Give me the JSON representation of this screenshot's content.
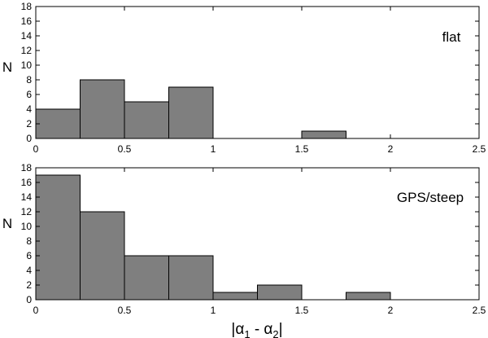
{
  "chart_data": [
    {
      "type": "bar",
      "panel_label": "flat",
      "ylabel": "N",
      "xlim": [
        0,
        2.5
      ],
      "ylim": [
        0,
        18
      ],
      "bin_width": 0.25,
      "bins": [
        0,
        0.25,
        0.5,
        0.75,
        1.0,
        1.25,
        1.5,
        1.75,
        2.0,
        2.25
      ],
      "values": [
        4,
        8,
        5,
        7,
        0,
        0,
        1,
        0,
        0,
        0
      ],
      "xticks": [
        "0",
        "0.5",
        "1",
        "1.5",
        "2",
        "2.5"
      ],
      "yticks": [
        "0",
        "2",
        "4",
        "6",
        "8",
        "10",
        "12",
        "14",
        "16",
        "18"
      ],
      "bar_color": "#7f7f7f"
    },
    {
      "type": "bar",
      "panel_label": "GPS/steep",
      "ylabel": "N",
      "xlabel": "|α1 - α2|",
      "xlim": [
        0,
        2.5
      ],
      "ylim": [
        0,
        18
      ],
      "bin_width": 0.25,
      "bins": [
        0,
        0.25,
        0.5,
        0.75,
        1.0,
        1.25,
        1.5,
        1.75,
        2.0,
        2.25
      ],
      "values": [
        17,
        12,
        6,
        6,
        1,
        2,
        0,
        1,
        0,
        0
      ],
      "xticks": [
        "0",
        "0.5",
        "1",
        "1.5",
        "2",
        "2.5"
      ],
      "yticks": [
        "0",
        "2",
        "4",
        "6",
        "8",
        "10",
        "12",
        "14",
        "16",
        "18"
      ],
      "bar_color": "#7f7f7f"
    }
  ]
}
